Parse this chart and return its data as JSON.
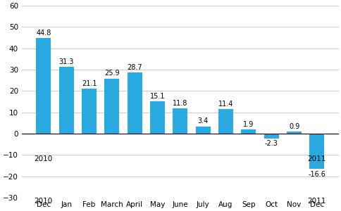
{
  "categories": [
    "Dec",
    "Jan",
    "Feb",
    "March",
    "April",
    "May",
    "June",
    "July",
    "Aug",
    "Sep",
    "Oct",
    "Nov",
    "Dec"
  ],
  "year_labels": {
    "0": "2010",
    "12": "2011"
  },
  "values": [
    44.8,
    31.3,
    21.1,
    25.9,
    28.7,
    15.1,
    11.8,
    3.4,
    11.4,
    1.9,
    -2.3,
    0.9,
    -16.6
  ],
  "bar_color": "#29abe2",
  "ylim": [
    -30,
    60
  ],
  "yticks": [
    -30,
    -20,
    -10,
    0,
    10,
    20,
    30,
    40,
    50,
    60
  ],
  "grid_color": "#cccccc",
  "label_fontsize": 7.5,
  "value_fontsize": 7.0,
  "background_color": "#ffffff"
}
